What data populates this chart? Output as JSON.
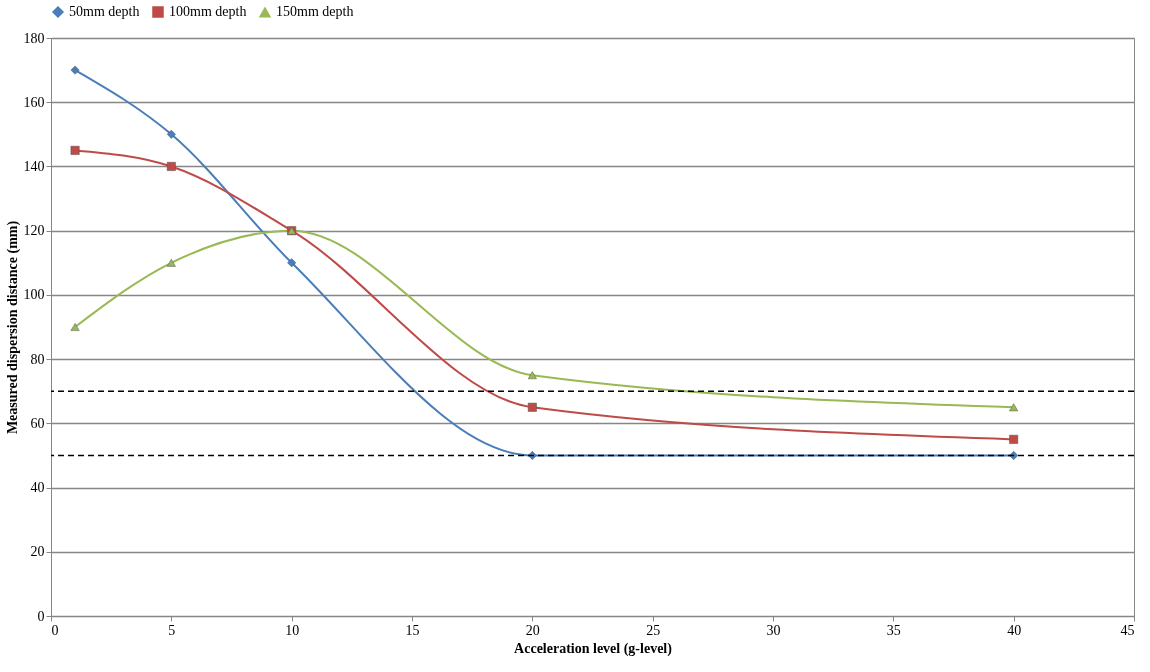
{
  "chart_data": {
    "type": "line",
    "xlabel": "Acceleration level (g-level)",
    "ylabel": "Measured dispersion distance (mm)",
    "x": [
      1,
      5,
      10,
      20,
      40
    ],
    "series": [
      {
        "name": "50mm depth",
        "color": "#4a7ebb",
        "marker": "diamond",
        "values": [
          170,
          150,
          110,
          50,
          50
        ]
      },
      {
        "name": "100mm depth",
        "color": "#be4b48",
        "marker": "square",
        "values": [
          145,
          140,
          120,
          65,
          55
        ]
      },
      {
        "name": "150mm depth",
        "color": "#98b954",
        "marker": "triangle",
        "values": [
          90,
          110,
          120,
          75,
          65
        ]
      }
    ],
    "xlim": [
      0,
      45
    ],
    "xticks": [
      0,
      5,
      10,
      15,
      20,
      25,
      30,
      35,
      40,
      45
    ],
    "ylim": [
      0,
      180
    ],
    "yticks": [
      0,
      20,
      40,
      60,
      80,
      100,
      120,
      140,
      160,
      180
    ],
    "ref_lines": [
      {
        "axis": "y",
        "value": 70,
        "color": "#000000",
        "line_style": "dashed"
      },
      {
        "axis": "y",
        "value": 50,
        "color": "#000000",
        "line_style": "dashed"
      }
    ],
    "grid": "y",
    "legend": "top",
    "line_style": "solid"
  }
}
